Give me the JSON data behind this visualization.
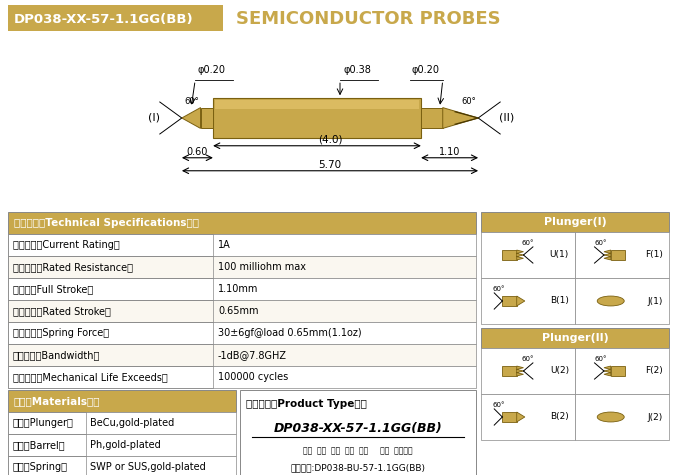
{
  "title_box_text": "DP038-XX-57-1.1GG(BB)",
  "title_main": "SEMICONDUCTOR PROBES",
  "gold_color": "#C8A84B",
  "gold_dark": "#7A6010",
  "gold_light": "#E8C870",
  "bg_color": "#FFFFFF",
  "gray": "#888888",
  "white": "#FFFFFF",
  "black": "#000000",
  "specs": [
    [
      "技术要求（Technical Specifications）：",
      ""
    ],
    [
      "额定电流（Current Rating）",
      "1A"
    ],
    [
      "额定电阻（Rated Resistance）",
      "100 milliohm max"
    ],
    [
      "满行程（Full Stroke）",
      "1.10mm"
    ],
    [
      "额定行程（Rated Stroke）",
      "0.65mm"
    ],
    [
      "额定弹力（Spring Force）",
      "30±6gf@load 0.65mm(1.1oz)"
    ],
    [
      "频率带宽（Bandwidth）",
      "-1dB@7.8GHZ"
    ],
    [
      "测试寿命（Mechanical Life Exceeds）",
      "100000 cycles"
    ]
  ],
  "materials": [
    [
      "材质（Materials）：",
      ""
    ],
    [
      "针头（Plunger）",
      "BeCu,gold-plated"
    ],
    [
      "针管（Barrel）",
      "Ph,gold-plated"
    ],
    [
      "弹簧（Spring）",
      "SWP or SUS,gold-plated"
    ]
  ],
  "product_type_label": "成品型号（Product Type）：",
  "product_type_main": "DP038-XX-57-1.1GG(BB)",
  "product_type_sub": "系列  规格  头型  总长  弹力     镀金  针头根数",
  "product_type_order": "订购举例:DP038-BU-57-1.1GG(BB)",
  "dim_phi038": "φ0.38",
  "dim_phi020_left": "φ0.20",
  "dim_phi020_right": "φ0.20",
  "dim_40": "(4.0)",
  "dim_570": "5.70",
  "dim_060": "0.60",
  "dim_110": "1.10",
  "label_I": "(I)",
  "label_II": "(II)",
  "plunger1_labels": [
    "U(1)",
    "F(1)",
    "B(1)",
    "J(1)"
  ],
  "plunger2_labels": [
    "U(2)",
    "F(2)",
    "B(2)",
    "J(2)"
  ],
  "plunger1_header": "Plunger(I)",
  "plunger2_header": "Plunger(II)"
}
